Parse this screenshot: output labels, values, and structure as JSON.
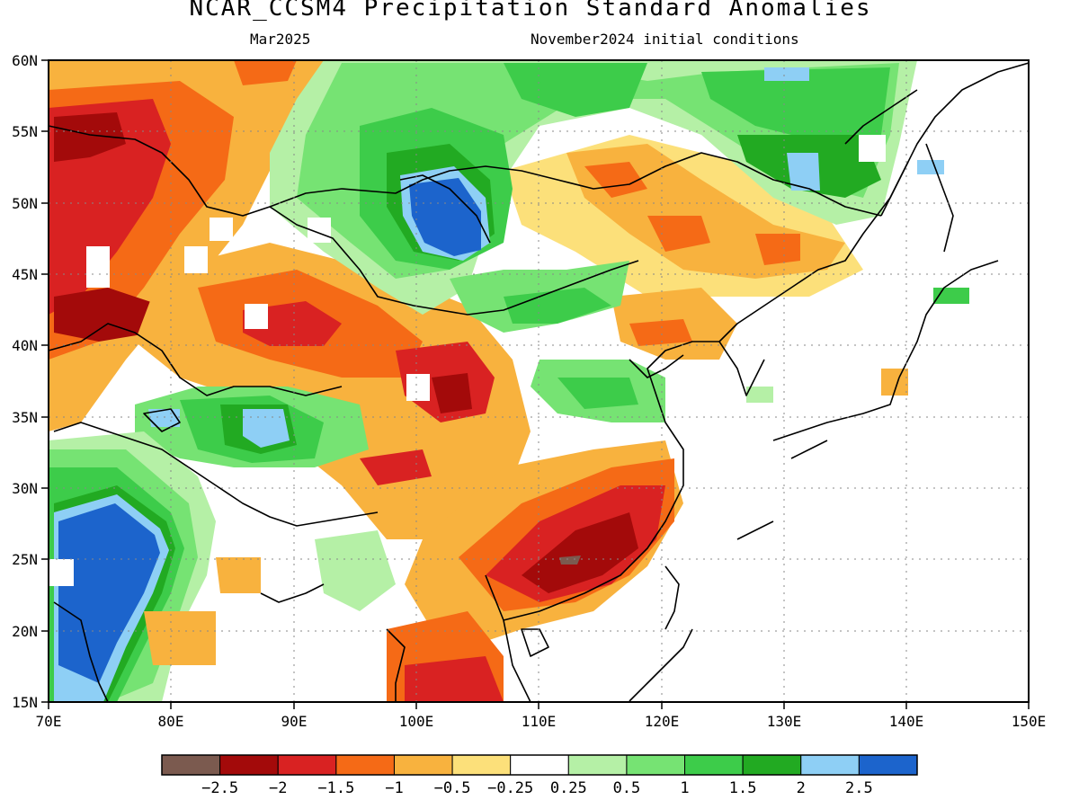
{
  "title": "NCAR_CCSM4 Precipitation Standard Anomalies",
  "subtitle_left": "Mar2025",
  "subtitle_right": "November2024 initial conditions",
  "axes": {
    "x_ticks": [
      "70E",
      "80E",
      "90E",
      "100E",
      "110E",
      "120E",
      "130E",
      "140E",
      "150E"
    ],
    "y_ticks": [
      "60N",
      "55N",
      "50N",
      "45N",
      "40N",
      "35N",
      "30N",
      "25N",
      "20N",
      "15N"
    ],
    "lon_range": [
      70,
      150
    ],
    "lat_range": [
      15,
      60
    ],
    "grid": "dotted"
  },
  "legend": {
    "colors": [
      "#7b5a4f",
      "#a30a0a",
      "#d92222",
      "#f56a16",
      "#f8b23e",
      "#fce07a",
      "#ffffff",
      "#b5f0a6",
      "#76e373",
      "#3dcc4a",
      "#22aa22",
      "#8ecff5",
      "#1c64cc"
    ],
    "labels": [
      "-2.5",
      "-2",
      "-1.5",
      "-1",
      "-0.5",
      "-0.25",
      "0.25",
      "0.5",
      "1",
      "1.5",
      "2",
      "2.5"
    ]
  },
  "anomaly_regions": [
    {
      "name": "india-west",
      "level": 2.5,
      "color": "#1c64cc"
    },
    {
      "name": "lake-baikal-region",
      "level": 2.5,
      "color": "#1c64cc"
    },
    {
      "name": "southeast-china",
      "level": -2.5,
      "color": "#7b5a4f"
    },
    {
      "name": "tibetan-plateau",
      "level": 2,
      "color": "#8ecff5"
    },
    {
      "name": "northeast-china",
      "level": 2,
      "color": "#8ecff5"
    }
  ]
}
